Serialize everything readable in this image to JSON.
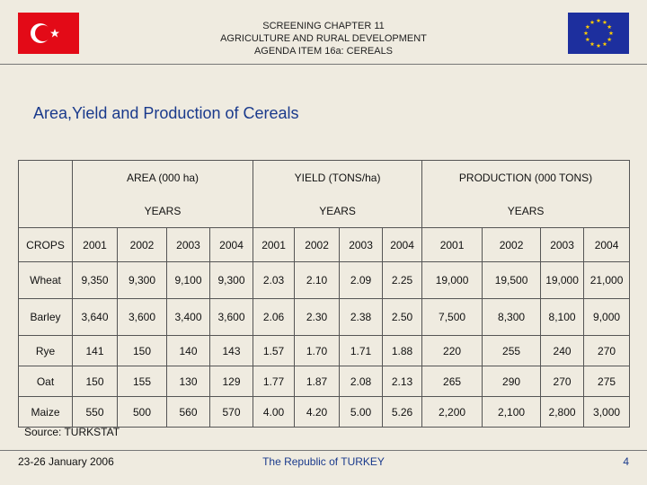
{
  "header": {
    "line1": "SCREENING CHAPTER 11",
    "line2": "AGRICULTURE AND RURAL DEVELOPMENT",
    "line3": "AGENDA ITEM 16a: CEREALS",
    "colors": {
      "turkey_flag": "#e30a17",
      "eu_flag": "#1d2f9e",
      "eu_stars": "#ffcc00",
      "title": "#1a3a8c"
    }
  },
  "title": "Area,Yield and Production of Cereals",
  "table": {
    "groups": [
      "AREA (000 ha)",
      "YIELD (TONS/ha)",
      "PRODUCTION (000 TONS)"
    ],
    "years_label": "YEARS",
    "crops_label": "CROPS",
    "years": [
      "2001",
      "2002",
      "2003",
      "2004"
    ],
    "rows": [
      {
        "crop": "Wheat",
        "values": [
          "9,350",
          "9,300",
          "9,100",
          "9,300",
          "2.03",
          "2.10",
          "2.09",
          "2.25",
          "19,000",
          "19,500",
          "19,000",
          "21,000"
        ]
      },
      {
        "crop": "Barley",
        "values": [
          "3,640",
          "3,600",
          "3,400",
          "3,600",
          "2.06",
          "2.30",
          "2.38",
          "2.50",
          "7,500",
          "8,300",
          "8,100",
          "9,000"
        ]
      },
      {
        "crop": "Rye",
        "values": [
          "141",
          "150",
          "140",
          "143",
          "1.57",
          "1.70",
          "1.71",
          "1.88",
          "220",
          "255",
          "240",
          "270"
        ]
      },
      {
        "crop": "Oat",
        "values": [
          "150",
          "155",
          "130",
          "129",
          "1.77",
          "1.87",
          "2.08",
          "2.13",
          "265",
          "290",
          "270",
          "275"
        ]
      },
      {
        "crop": "Maize",
        "values": [
          "550",
          "500",
          "560",
          "570",
          "4.00",
          "4.20",
          "5.00",
          "5.26",
          "2,200",
          "2,100",
          "2,800",
          "3,000"
        ]
      }
    ]
  },
  "source": "Source: TURKSTAT",
  "footer": {
    "date": "23-26 January 2006",
    "center": "The Republic of TURKEY",
    "page": "4"
  }
}
